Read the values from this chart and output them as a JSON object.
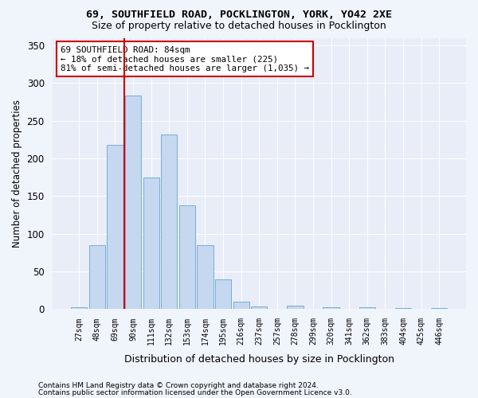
{
  "title": "69, SOUTHFIELD ROAD, POCKLINGTON, YORK, YO42 2XE",
  "subtitle": "Size of property relative to detached houses in Pocklington",
  "xlabel": "Distribution of detached houses by size in Pocklington",
  "ylabel": "Number of detached properties",
  "bar_labels": [
    "27sqm",
    "48sqm",
    "69sqm",
    "90sqm",
    "111sqm",
    "132sqm",
    "153sqm",
    "174sqm",
    "195sqm",
    "216sqm",
    "237sqm",
    "257sqm",
    "278sqm",
    "299sqm",
    "320sqm",
    "341sqm",
    "362sqm",
    "383sqm",
    "404sqm",
    "425sqm",
    "446sqm"
  ],
  "bar_values": [
    3,
    85,
    218,
    283,
    175,
    232,
    138,
    85,
    40,
    10,
    4,
    0,
    5,
    0,
    3,
    0,
    3,
    0,
    1,
    0,
    2
  ],
  "bar_color": "#c5d8f0",
  "bar_edge_color": "#7aadd4",
  "vline_color": "#cc0000",
  "vline_x": 2.5,
  "annotation_title": "69 SOUTHFIELD ROAD: 84sqm",
  "annotation_line1": "← 18% of detached houses are smaller (225)",
  "annotation_line2": "81% of semi-detached houses are larger (1,035) →",
  "annotation_box_facecolor": "#ffffff",
  "annotation_box_edgecolor": "#cc0000",
  "ylim": [
    0,
    360
  ],
  "yticks": [
    0,
    50,
    100,
    150,
    200,
    250,
    300,
    350
  ],
  "footer1": "Contains HM Land Registry data © Crown copyright and database right 2024.",
  "footer2": "Contains public sector information licensed under the Open Government Licence v3.0.",
  "fig_facecolor": "#f0f4fb",
  "axes_facecolor": "#e8edf7"
}
